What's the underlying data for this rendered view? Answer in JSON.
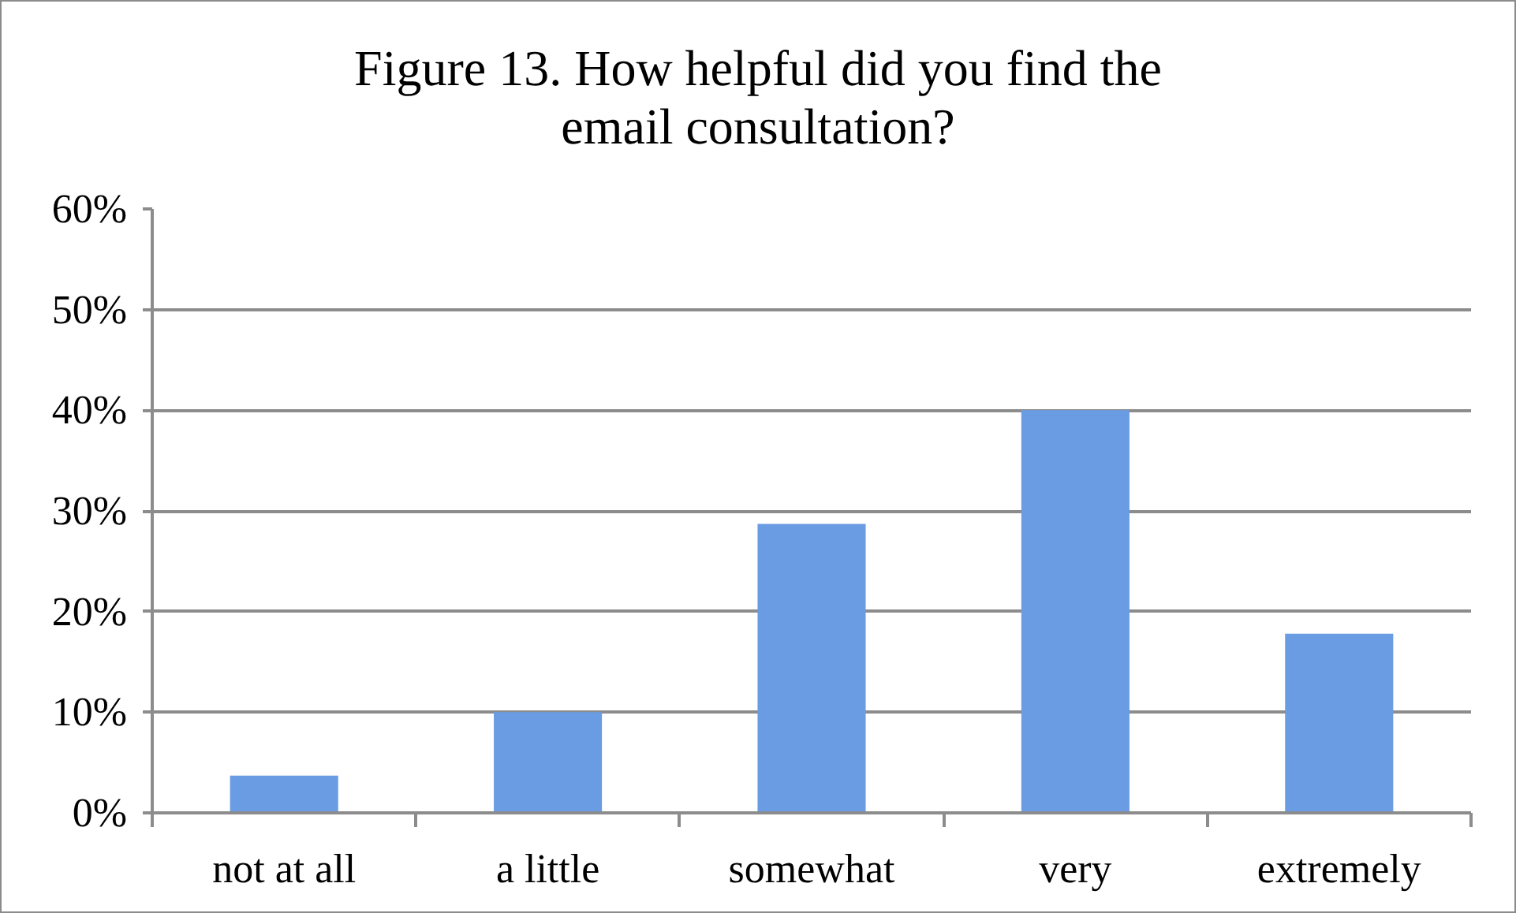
{
  "chart_data": {
    "type": "bar",
    "title": "Figure 13. How helpful did you find the email consultation?",
    "categories": [
      "not at all",
      "a little",
      "somewhat",
      "very",
      "extremely"
    ],
    "values": [
      3.7,
      10,
      28.7,
      40,
      17.8
    ],
    "color": "#6a9ce4",
    "ylim": [
      0,
      60
    ],
    "yticks": [
      {
        "value": 0,
        "label": "0%"
      },
      {
        "value": 10,
        "label": "10%"
      },
      {
        "value": 20,
        "label": "20%"
      },
      {
        "value": 30,
        "label": "30%"
      },
      {
        "value": 40,
        "label": "40%"
      },
      {
        "value": 50,
        "label": "50%"
      },
      {
        "value": 60,
        "label": "60%"
      }
    ],
    "grid": "y"
  }
}
